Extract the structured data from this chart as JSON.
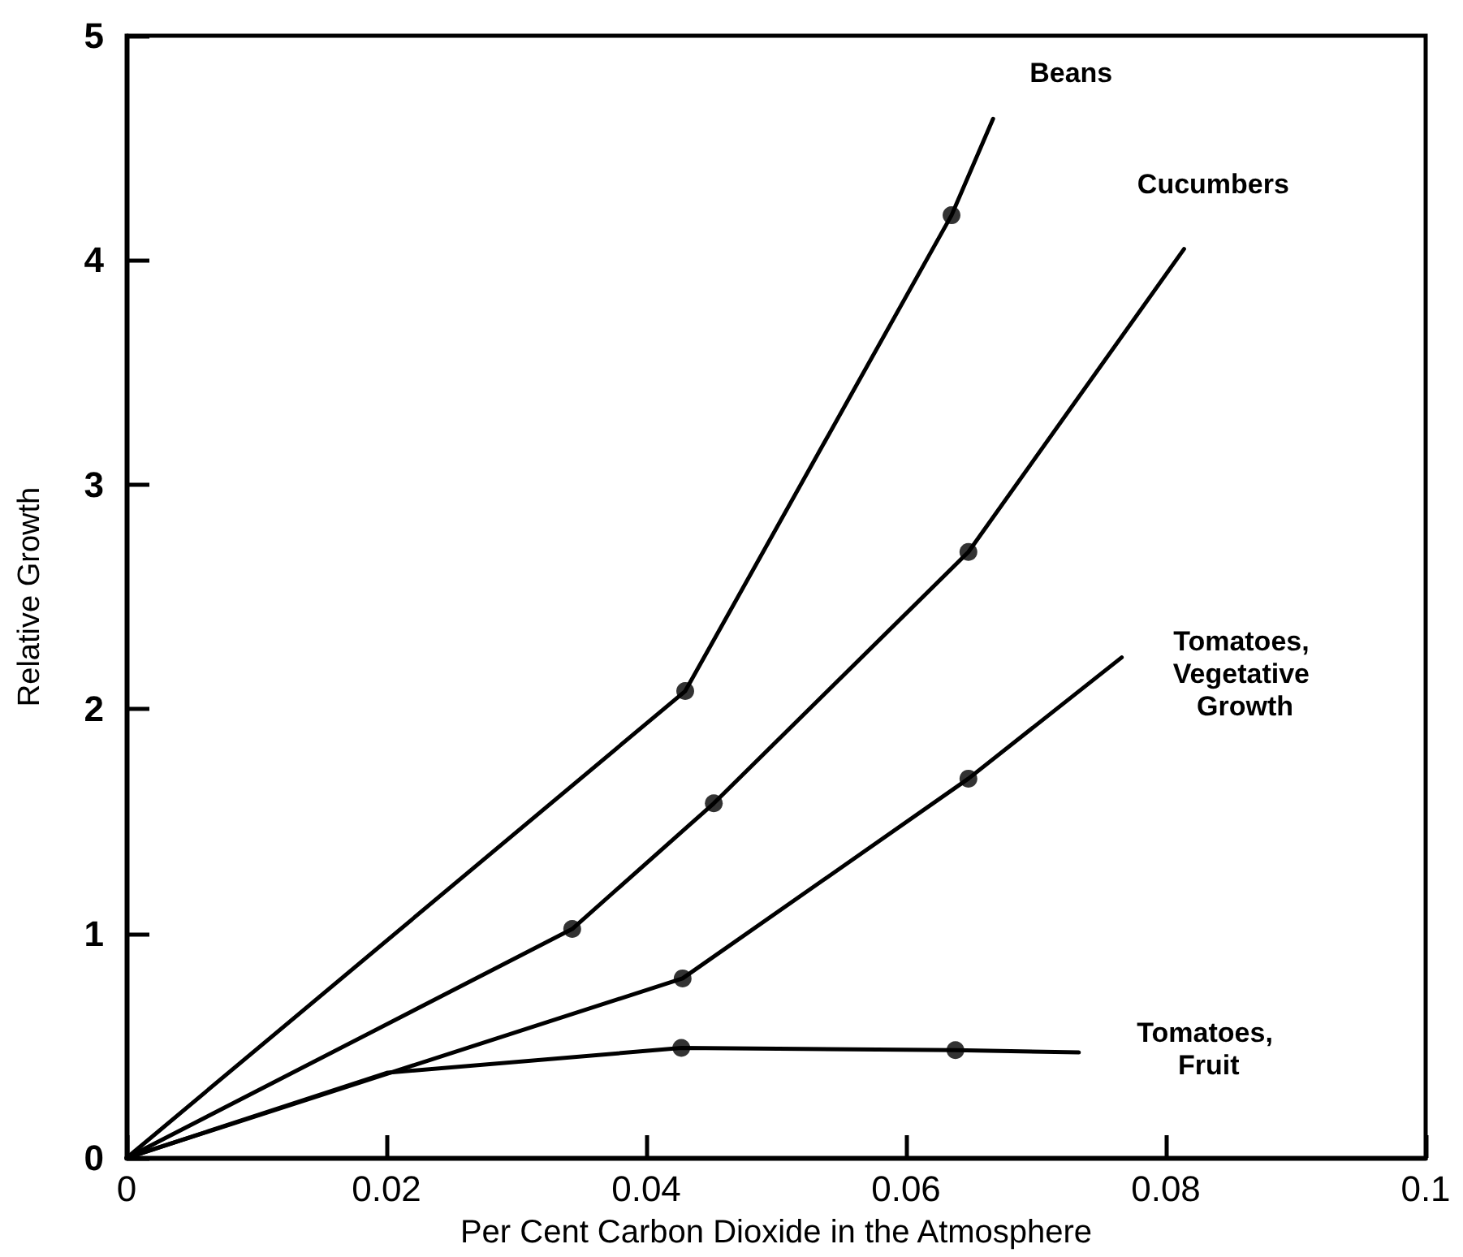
{
  "chart_data": {
    "type": "line",
    "xlabel": "Per Cent Carbon Dioxide in the Atmosphere",
    "ylabel": "Relative Growth",
    "xlim": [
      0,
      0.1
    ],
    "xticks": [
      0,
      0.02,
      0.04,
      0.06,
      0.08,
      0.1
    ],
    "ylim": [
      0,
      5
    ],
    "yticks": [
      0,
      1,
      2,
      3,
      4,
      5
    ],
    "grid": false,
    "legend": false,
    "marker": "none",
    "line_style": "solid",
    "series": [
      {
        "name": "Beans",
        "color": "#000000",
        "x": [
          0,
          0.043,
          0.0635,
          0.0667
        ],
        "values": [
          0,
          2.08,
          4.2,
          4.63
        ]
      },
      {
        "name": "Cucumbers",
        "color": "#000000",
        "x": [
          0,
          0.0343,
          0.0452,
          0.0648,
          0.0814
        ],
        "values": [
          0,
          1.02,
          1.58,
          2.7,
          4.05
        ]
      },
      {
        "name": "Tomatoes, Vegetative Growth",
        "color": "#000000",
        "x": [
          0,
          0.0428,
          0.0648,
          0.0766
        ],
        "values": [
          0,
          0.8,
          1.69,
          2.23
        ]
      },
      {
        "name": "Tomatoes, Fruit",
        "color": "#000000",
        "x": [
          0,
          0.0201,
          0.0427,
          0.0638,
          0.0733
        ],
        "values": [
          0,
          0.38,
          0.49,
          0.48,
          0.47
        ]
      },
      {
        "type": "scatter",
        "marker": "circle",
        "color": "#000000",
        "x": [
          0.043,
          0.0635
        ],
        "values": [
          2.08,
          4.2
        ]
      },
      {
        "type": "scatter",
        "marker": "circle",
        "color": "#000000",
        "x": [
          0.0343,
          0.0452,
          0.0648
        ],
        "values": [
          1.02,
          1.58,
          2.7
        ]
      },
      {
        "type": "scatter",
        "marker": "circle",
        "color": "#000000",
        "x": [
          0.0428,
          0.0648
        ],
        "values": [
          0.8,
          1.69
        ]
      },
      {
        "type": "scatter",
        "marker": "circle",
        "color": "#000000",
        "x": [
          0.0427,
          0.0638
        ],
        "values": [
          0.49,
          0.48
        ]
      }
    ]
  }
}
